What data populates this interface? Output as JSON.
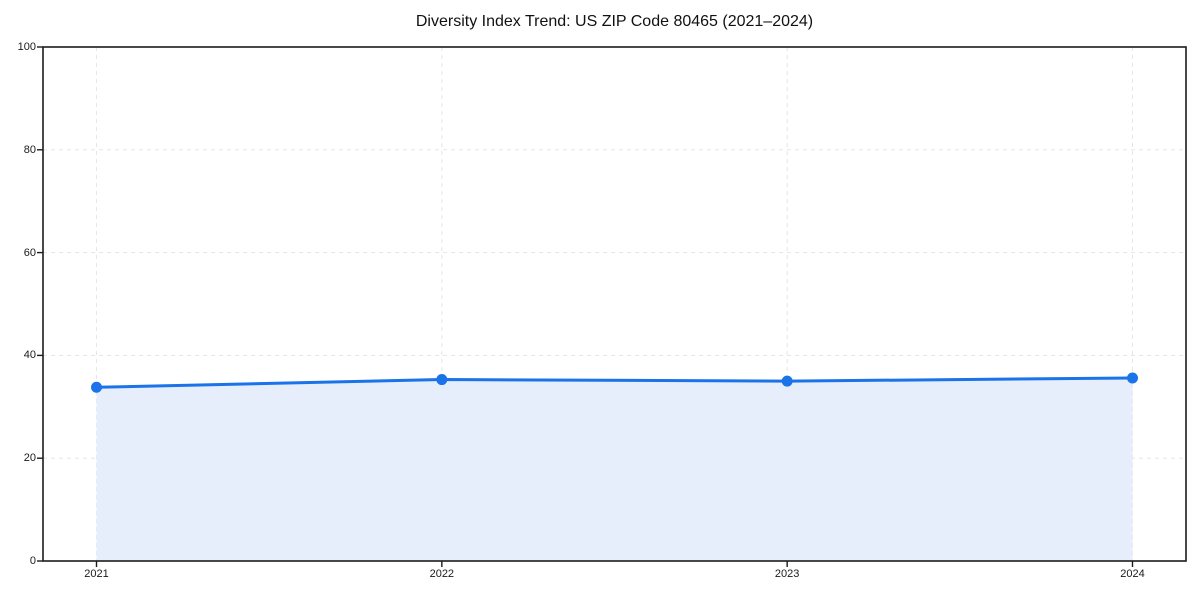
{
  "title": "Diversity Index Trend: US ZIP Code 80465 (2021–2024)",
  "chart_data": {
    "type": "area",
    "title": "Diversity Index Trend: US ZIP Code 80465 (2021–2024)",
    "categories": [
      "2021",
      "2022",
      "2023",
      "2024"
    ],
    "values": [
      33.8,
      35.3,
      35.0,
      35.6
    ],
    "series_name": "Diversity Index",
    "xlabel": "",
    "ylabel": "",
    "ylim": [
      0,
      100
    ],
    "y_ticks": [
      0,
      20,
      40,
      60,
      80,
      100
    ],
    "grid": true,
    "grid_style": "dashed",
    "legend": "none",
    "marker": "circle",
    "colors": {
      "line": "#1a73e8",
      "marker": "#1a73e8",
      "fill": "#e7eefb",
      "grid": "#e6e6e6",
      "border": "#1c1c1c",
      "tick": "#1c1c1c",
      "text": "#1a1a1a",
      "background": "#ffffff"
    }
  }
}
